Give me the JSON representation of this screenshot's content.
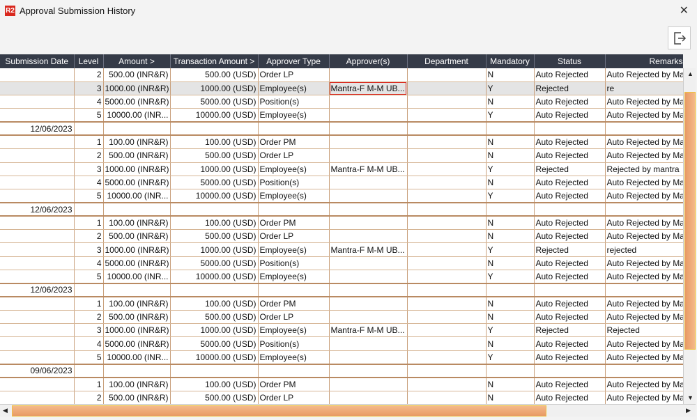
{
  "window": {
    "title": "Approval Submission History",
    "logo": "R2",
    "close": "✕"
  },
  "toolbar": {
    "exit_icon": "exit-icon"
  },
  "columns": [
    "Submission Date",
    "Level",
    "Amount >",
    "Transaction Amount >",
    "Approver Type",
    "Approver(s)",
    "Department",
    "Mandatory",
    "Status",
    "Remarks"
  ],
  "rows": [
    [
      "",
      "2",
      "500.00 (INR&R)",
      "500.00 (USD)",
      "Order LP",
      "",
      "",
      "N",
      "Auto Rejected",
      "Auto Rejected by Ma"
    ],
    [
      "",
      "3",
      "1000.00 (INR&R)",
      "1000.00 (USD)",
      "Employee(s)",
      "Mantra-F M-M UB...",
      "",
      "Y",
      "Rejected",
      "re"
    ],
    [
      "",
      "4",
      "5000.00 (INR&R)",
      "5000.00 (USD)",
      "Position(s)",
      "",
      "",
      "N",
      "Auto Rejected",
      "Auto Rejected by Ma"
    ],
    [
      "",
      "5",
      "10000.00 (INR...",
      "10000.00 (USD)",
      "Employee(s)",
      "",
      "",
      "Y",
      "Auto Rejected",
      "Auto Rejected by Ma"
    ],
    [
      "12/06/2023",
      "",
      "",
      "",
      "",
      "",
      "",
      "",
      "",
      ""
    ],
    [
      "",
      "1",
      "100.00 (INR&R)",
      "100.00 (USD)",
      "Order PM",
      "",
      "",
      "N",
      "Auto Rejected",
      "Auto Rejected by Ma"
    ],
    [
      "",
      "2",
      "500.00 (INR&R)",
      "500.00 (USD)",
      "Order LP",
      "",
      "",
      "N",
      "Auto Rejected",
      "Auto Rejected by Ma"
    ],
    [
      "",
      "3",
      "1000.00 (INR&R)",
      "1000.00 (USD)",
      "Employee(s)",
      "Mantra-F M-M UB...",
      "",
      "Y",
      "Rejected",
      "Rejected by mantra"
    ],
    [
      "",
      "4",
      "5000.00 (INR&R)",
      "5000.00 (USD)",
      "Position(s)",
      "",
      "",
      "N",
      "Auto Rejected",
      "Auto Rejected by Ma"
    ],
    [
      "",
      "5",
      "10000.00 (INR...",
      "10000.00 (USD)",
      "Employee(s)",
      "",
      "",
      "Y",
      "Auto Rejected",
      "Auto Rejected by Ma"
    ],
    [
      "12/06/2023",
      "",
      "",
      "",
      "",
      "",
      "",
      "",
      "",
      ""
    ],
    [
      "",
      "1",
      "100.00 (INR&R)",
      "100.00 (USD)",
      "Order PM",
      "",
      "",
      "N",
      "Auto Rejected",
      "Auto Rejected by Ma"
    ],
    [
      "",
      "2",
      "500.00 (INR&R)",
      "500.00 (USD)",
      "Order LP",
      "",
      "",
      "N",
      "Auto Rejected",
      "Auto Rejected by Ma"
    ],
    [
      "",
      "3",
      "1000.00 (INR&R)",
      "1000.00 (USD)",
      "Employee(s)",
      "Mantra-F M-M UB...",
      "",
      "Y",
      "Rejected",
      "rejected"
    ],
    [
      "",
      "4",
      "5000.00 (INR&R)",
      "5000.00 (USD)",
      "Position(s)",
      "",
      "",
      "N",
      "Auto Rejected",
      "Auto Rejected by Ma"
    ],
    [
      "",
      "5",
      "10000.00 (INR...",
      "10000.00 (USD)",
      "Employee(s)",
      "",
      "",
      "Y",
      "Auto Rejected",
      "Auto Rejected by Ma"
    ],
    [
      "12/06/2023",
      "",
      "",
      "",
      "",
      "",
      "",
      "",
      "",
      ""
    ],
    [
      "",
      "1",
      "100.00 (INR&R)",
      "100.00 (USD)",
      "Order PM",
      "",
      "",
      "N",
      "Auto Rejected",
      "Auto Rejected by Ma"
    ],
    [
      "",
      "2",
      "500.00 (INR&R)",
      "500.00 (USD)",
      "Order LP",
      "",
      "",
      "N",
      "Auto Rejected",
      "Auto Rejected by Ma"
    ],
    [
      "",
      "3",
      "1000.00 (INR&R)",
      "1000.00 (USD)",
      "Employee(s)",
      "Mantra-F M-M UB...",
      "",
      "Y",
      "Rejected",
      "Rejected"
    ],
    [
      "",
      "4",
      "5000.00 (INR&R)",
      "5000.00 (USD)",
      "Position(s)",
      "",
      "",
      "N",
      "Auto Rejected",
      "Auto Rejected by Ma"
    ],
    [
      "",
      "5",
      "10000.00 (INR...",
      "10000.00 (USD)",
      "Employee(s)",
      "",
      "",
      "Y",
      "Auto Rejected",
      "Auto Rejected by Ma"
    ],
    [
      "09/06/2023",
      "",
      "",
      "",
      "",
      "",
      "",
      "",
      "",
      ""
    ],
    [
      "",
      "1",
      "100.00 (INR&R)",
      "100.00 (USD)",
      "Order PM",
      "",
      "",
      "N",
      "Auto Rejected",
      "Auto Rejected by Ma"
    ],
    [
      "",
      "2",
      "500.00 (INR&R)",
      "500.00 (USD)",
      "Order LP",
      "",
      "",
      "N",
      "Auto Rejected",
      "Auto Rejected by Ma"
    ]
  ],
  "selected_row": 1
}
